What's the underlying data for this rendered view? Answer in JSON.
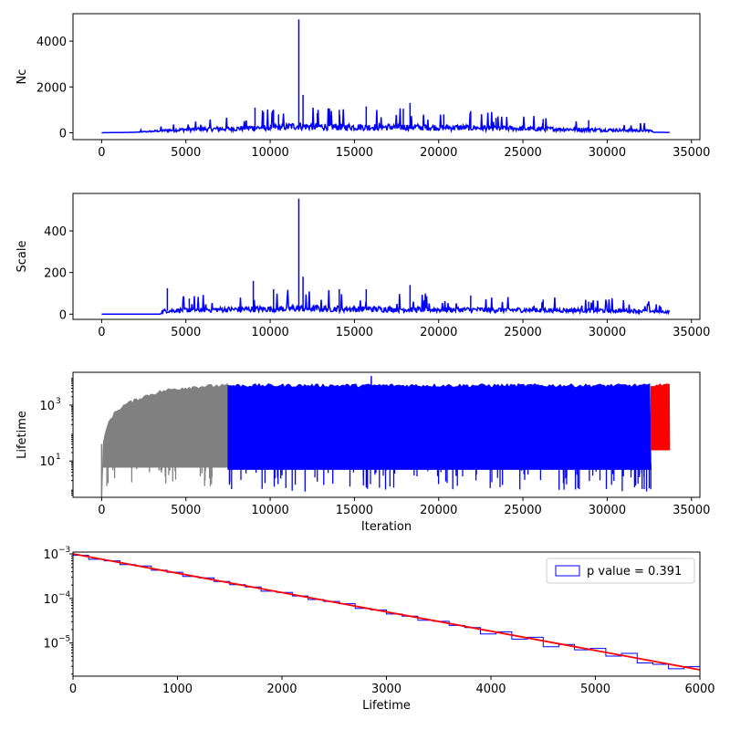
{
  "chart_data": [
    {
      "type": "line",
      "ylabel": "Nc",
      "xlim": [
        -1700,
        35500
      ],
      "ylim": [
        -300,
        5200
      ],
      "x_ticks": [
        0,
        5000,
        10000,
        15000,
        20000,
        25000,
        30000,
        35000
      ],
      "x_tick_labels": [
        "0",
        "5000",
        "10000",
        "15000",
        "20000",
        "25000",
        "30000",
        "35000"
      ],
      "y_ticks": [
        0,
        2000,
        4000
      ],
      "y_tick_labels": [
        "0",
        "2000",
        "4000"
      ],
      "grid": false,
      "series_color": "#0000ff",
      "series": [
        {
          "x": [
            0,
            2000,
            3000,
            4000,
            5000,
            6000,
            8000,
            9000,
            10000,
            11000,
            11700,
            12000,
            14000,
            15800,
            18000,
            18300,
            20000,
            22000,
            25000,
            28000,
            30000,
            32500,
            32800,
            33700
          ],
          "y": [
            0,
            20,
            60,
            110,
            140,
            160,
            180,
            220,
            230,
            260,
            300,
            280,
            260,
            250,
            240,
            250,
            230,
            220,
            180,
            150,
            120,
            100,
            20,
            15
          ]
        }
      ],
      "spikes": [
        {
          "x": 9100,
          "y": 1100
        },
        {
          "x": 9600,
          "y": 900
        },
        {
          "x": 10200,
          "y": 1000
        },
        {
          "x": 10500,
          "y": 800
        },
        {
          "x": 11700,
          "y": 4950
        },
        {
          "x": 11950,
          "y": 1650
        },
        {
          "x": 12800,
          "y": 850
        },
        {
          "x": 14100,
          "y": 1000
        },
        {
          "x": 15700,
          "y": 1150
        },
        {
          "x": 17900,
          "y": 1050
        },
        {
          "x": 18300,
          "y": 1300
        },
        {
          "x": 20300,
          "y": 800
        },
        {
          "x": 21900,
          "y": 950
        },
        {
          "x": 23400,
          "y": 650
        },
        {
          "x": 26200,
          "y": 600
        },
        {
          "x": 28900,
          "y": 550
        }
      ]
    },
    {
      "type": "line",
      "ylabel": "Scale",
      "xlim": [
        -1700,
        35500
      ],
      "ylim": [
        -25,
        580
      ],
      "x_ticks": [
        0,
        5000,
        10000,
        15000,
        20000,
        25000,
        30000,
        35000
      ],
      "x_tick_labels": [
        "0",
        "5000",
        "10000",
        "15000",
        "20000",
        "25000",
        "30000",
        "35000"
      ],
      "y_ticks": [
        0,
        200,
        400
      ],
      "y_tick_labels": [
        "0",
        "200",
        "400"
      ],
      "grid": false,
      "series_color": "#0000ff",
      "series": [
        {
          "x": [
            0,
            3500,
            3600,
            5000,
            10000,
            11700,
            15000,
            20000,
            25000,
            30000,
            32500,
            33700
          ],
          "y": [
            0,
            0,
            15,
            20,
            25,
            28,
            25,
            22,
            20,
            18,
            15,
            10
          ]
        }
      ],
      "spikes": [
        {
          "x": 3900,
          "y": 125
        },
        {
          "x": 5200,
          "y": 75
        },
        {
          "x": 9000,
          "y": 160
        },
        {
          "x": 10200,
          "y": 120
        },
        {
          "x": 11700,
          "y": 555
        },
        {
          "x": 11950,
          "y": 180
        },
        {
          "x": 14100,
          "y": 120
        },
        {
          "x": 15700,
          "y": 120
        },
        {
          "x": 18300,
          "y": 140
        },
        {
          "x": 21900,
          "y": 90
        },
        {
          "x": 26200,
          "y": 70
        },
        {
          "x": 28900,
          "y": 60
        }
      ]
    },
    {
      "type": "area",
      "xlabel": "Iteration",
      "ylabel": "Lifetime",
      "yscale": "log",
      "xlim": [
        -1700,
        35500
      ],
      "ylim": [
        0.5,
        15000
      ],
      "x_ticks": [
        0,
        5000,
        10000,
        15000,
        20000,
        25000,
        30000,
        35000
      ],
      "x_tick_labels": [
        "0",
        "5000",
        "10000",
        "15000",
        "20000",
        "25000",
        "30000",
        "35000"
      ],
      "y_ticks": [
        10,
        1000
      ],
      "y_tick_labels": [
        "10",
        "1000"
      ],
      "grid": false,
      "segments": [
        {
          "x_start": 0,
          "x_end": 7500,
          "color": "#808080"
        },
        {
          "x_start": 7500,
          "x_end": 32600,
          "color": "#0000ff"
        },
        {
          "x_start": 32600,
          "x_end": 33700,
          "color": "#ff0000"
        }
      ],
      "upper_envelope": {
        "x": [
          0,
          250,
          1000,
          2000,
          3000,
          4000,
          5000,
          6000,
          7500,
          32600,
          33700
        ],
        "y": [
          0.5,
          100,
          700,
          1500,
          2500,
          3500,
          4200,
          4700,
          5000,
          5000,
          5000
        ]
      },
      "peak": {
        "x": 16000,
        "y": 11000
      }
    },
    {
      "type": "line",
      "xlabel": "Lifetime",
      "yscale": "log",
      "xlim": [
        0,
        6000
      ],
      "ylim": [
        1.8e-06,
        0.0011
      ],
      "x_ticks": [
        0,
        1000,
        2000,
        3000,
        4000,
        5000,
        6000
      ],
      "x_tick_labels": [
        "0",
        "1000",
        "2000",
        "3000",
        "4000",
        "5000",
        "6000"
      ],
      "y_ticks": [
        1e-05,
        0.0001,
        0.001
      ],
      "y_tick_labels": [
        "10",
        "10",
        "10"
      ],
      "y_tick_exponents": [
        "−5",
        "−4",
        "−3"
      ],
      "grid": false,
      "legend": {
        "label": "p value = 0.391",
        "placement": "upper right"
      },
      "histogram": {
        "color": "#0000ff",
        "bin_width": 150,
        "decay_scale": 1000,
        "start_density": 0.001,
        "noise": [
          1,
          0.95,
          1.02,
          0.97,
          1.05,
          0.98,
          1.03,
          0.96,
          1.04,
          1,
          0.98,
          1.02,
          0.95,
          1.03,
          1,
          0.97,
          1.02,
          1.05,
          0.96,
          1.03,
          0.97,
          1.01,
          0.95,
          1.04,
          0.98,
          1.02,
          0.85,
          1.1,
          0.88,
          1.12,
          0.8,
          1.05,
          0.92,
          1.15,
          0.9,
          1.2,
          0.85,
          0.92,
          0.85,
          1.1
        ]
      },
      "fit_line": {
        "color": "#ff0000",
        "x": [
          0,
          6000
        ],
        "y": [
          0.001,
          2.5e-06
        ]
      }
    }
  ]
}
